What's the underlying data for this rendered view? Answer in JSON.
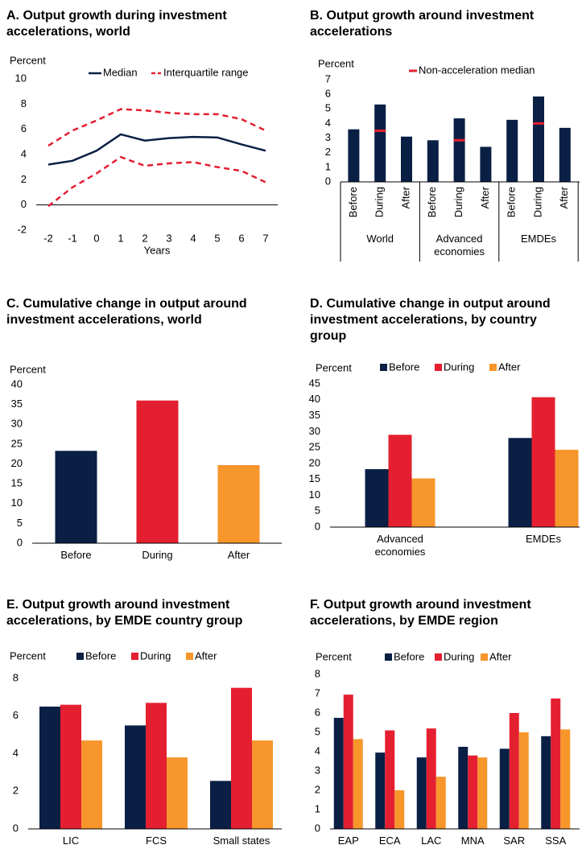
{
  "chart_data": [
    {
      "type": "line",
      "title": "A. Output growth during investment accelerations, world",
      "ylabel": "Percent",
      "xlabel": "Years",
      "x": [
        -2,
        -1,
        0,
        1,
        2,
        3,
        4,
        5,
        6,
        7
      ],
      "xlim": [
        -2.5,
        7.5
      ],
      "xticks": [
        -2,
        -1,
        0,
        1,
        2,
        3,
        4,
        5,
        6,
        7
      ],
      "ylim": [
        -2,
        10
      ],
      "yticks": [
        -2,
        0,
        2,
        4,
        6,
        8,
        10
      ],
      "series": [
        {
          "name": "Median",
          "color": "#0a1f44",
          "values": [
            3.2,
            3.5,
            4.3,
            5.6,
            5.1,
            5.3,
            5.4,
            5.35,
            4.8,
            4.3
          ]
        },
        {
          "name": "Interquartile range",
          "color": "#e41f30",
          "dashed": true,
          "upper": [
            4.7,
            5.9,
            6.7,
            7.6,
            7.5,
            7.3,
            7.2,
            7.2,
            6.8,
            5.9
          ],
          "lower": [
            -0.1,
            1.4,
            2.5,
            3.8,
            3.1,
            3.3,
            3.4,
            3.0,
            2.7,
            1.8
          ]
        }
      ]
    },
    {
      "type": "bar",
      "title": "B. Output growth around investment accelerations",
      "ylabel": "Percent",
      "categories": [
        "Before",
        "During",
        "After",
        "Before",
        "During",
        "After",
        "Before",
        "During",
        "After"
      ],
      "groups": [
        "World",
        "Advanced economies",
        "EMDEs"
      ],
      "values": [
        3.6,
        5.3,
        3.1,
        2.85,
        4.35,
        2.4,
        4.25,
        5.85,
        3.7
      ],
      "color": "#0a1f44",
      "markers": {
        "name": "Non-acceleration median",
        "color": "#e41f30",
        "values": [
          null,
          3.5,
          null,
          null,
          2.85,
          null,
          null,
          4.0,
          null
        ]
      },
      "ylim": [
        0,
        7
      ],
      "yticks": [
        0,
        1,
        2,
        3,
        4,
        5,
        6,
        7
      ]
    },
    {
      "type": "bar",
      "title": "C. Cumulative change in output around investment accelerations, world",
      "ylabel": "Percent",
      "categories": [
        "Before",
        "During",
        "After"
      ],
      "values": [
        23.3,
        36,
        19.7
      ],
      "colors": [
        "#0a1f44",
        "#e41f30",
        "#f6962b"
      ],
      "ylim": [
        0,
        40
      ],
      "yticks": [
        0,
        5,
        10,
        15,
        20,
        25,
        30,
        35,
        40
      ]
    },
    {
      "type": "bar",
      "title": "D. Cumulative change in output around investment accelerations, by country group",
      "ylabel": "Percent",
      "categories": [
        "Advanced economies",
        "EMDEs"
      ],
      "series": [
        {
          "name": "Before",
          "color": "#0a1f44",
          "values": [
            18.2,
            28.0
          ]
        },
        {
          "name": "During",
          "color": "#e41f30",
          "values": [
            29.0,
            40.8
          ]
        },
        {
          "name": "After",
          "color": "#f6962b",
          "values": [
            15.3,
            24.3
          ]
        }
      ],
      "ylim": [
        0,
        45
      ],
      "yticks": [
        0,
        5,
        10,
        15,
        20,
        25,
        30,
        35,
        40,
        45
      ]
    },
    {
      "type": "bar",
      "title": "E. Output growth around investment accelerations, by EMDE country group",
      "ylabel": "Percent",
      "categories": [
        "LIC",
        "FCS",
        "Small states"
      ],
      "series": [
        {
          "name": "Before",
          "color": "#0a1f44",
          "values": [
            6.5,
            5.5,
            2.55
          ]
        },
        {
          "name": "During",
          "color": "#e41f30",
          "values": [
            6.6,
            6.7,
            7.5
          ]
        },
        {
          "name": "After",
          "color": "#f6962b",
          "values": [
            4.7,
            3.8,
            4.7
          ]
        }
      ],
      "ylim": [
        0,
        8
      ],
      "yticks": [
        0,
        2,
        4,
        6,
        8
      ]
    },
    {
      "type": "bar",
      "title": "F. Output growth around investment accelerations, by EMDE region",
      "ylabel": "Percent",
      "categories": [
        "EAP",
        "ECA",
        "LAC",
        "MNA",
        "SAR",
        "SSA"
      ],
      "series": [
        {
          "name": "Before",
          "color": "#0a1f44",
          "values": [
            5.75,
            3.95,
            3.7,
            4.25,
            4.15,
            4.8
          ]
        },
        {
          "name": "During",
          "color": "#e41f30",
          "values": [
            6.95,
            5.1,
            5.2,
            3.8,
            6.0,
            6.75
          ]
        },
        {
          "name": "After",
          "color": "#f6962b",
          "values": [
            4.65,
            2.0,
            2.7,
            3.7,
            5.0,
            5.15
          ]
        }
      ],
      "ylim": [
        0,
        8
      ],
      "yticks": [
        0,
        1,
        2,
        3,
        4,
        5,
        6,
        7,
        8
      ]
    }
  ]
}
